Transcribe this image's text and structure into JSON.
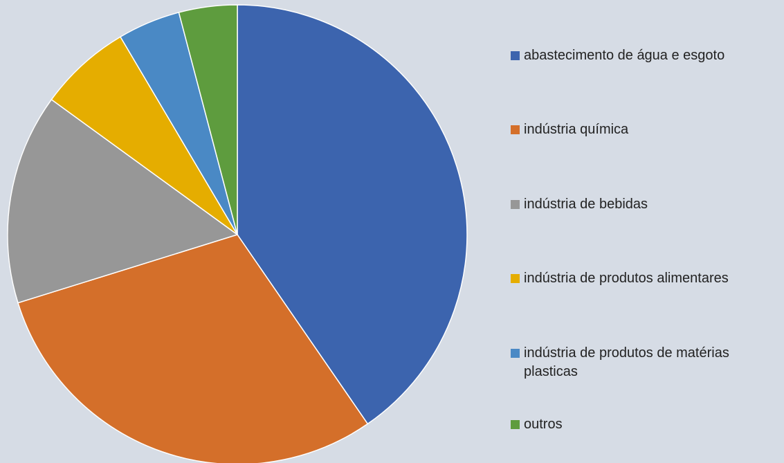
{
  "chart_data": {
    "type": "pie",
    "categories": [
      "abastecimento de água e esgoto",
      "indústria química",
      "indústria de bebidas",
      "indústria de produtos alimentares",
      "indústria de produtos de matérias plasticas",
      "outros"
    ],
    "values": [
      40.4,
      29.8,
      14.8,
      6.5,
      4.4,
      4.1
    ],
    "colors": [
      "#3c64ae",
      "#d46f2a",
      "#979797",
      "#e5ad00",
      "#4a89c5",
      "#5e9c3e"
    ],
    "legend": "right"
  }
}
